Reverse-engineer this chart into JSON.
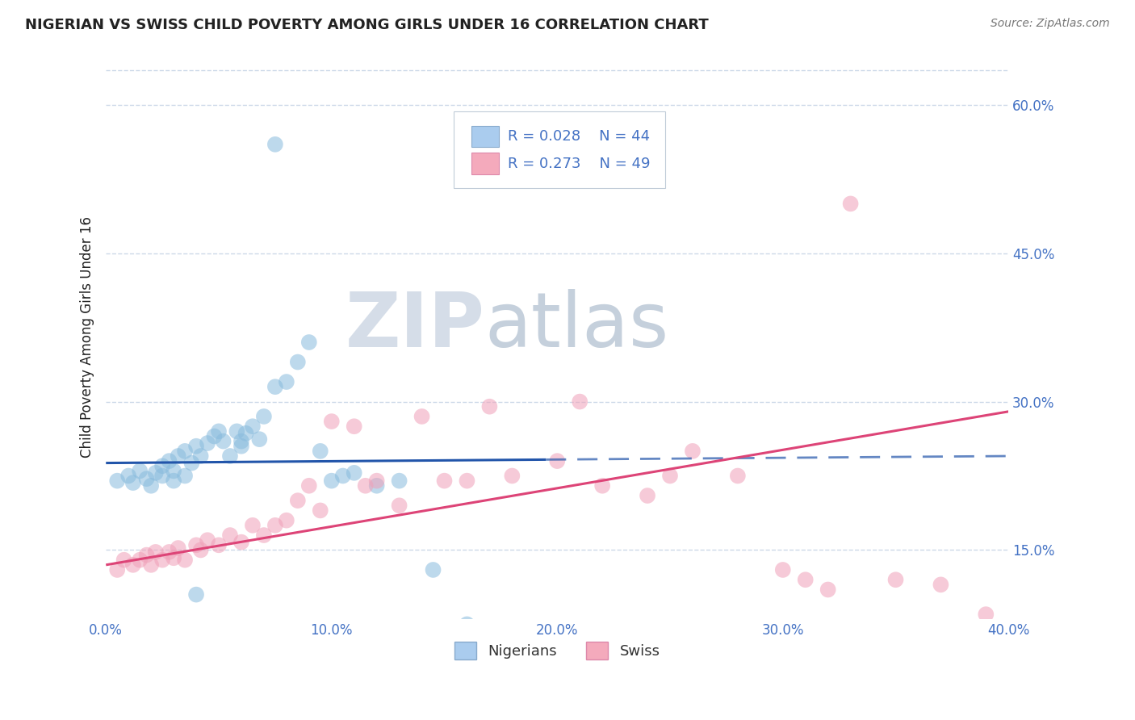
{
  "title": "NIGERIAN VS SWISS CHILD POVERTY AMONG GIRLS UNDER 16 CORRELATION CHART",
  "source": "Source: ZipAtlas.com",
  "ylabel": "Child Poverty Among Girls Under 16",
  "xlim": [
    0.0,
    0.4
  ],
  "ylim": [
    0.08,
    0.65
  ],
  "xtick_labels": [
    "0.0%",
    "10.0%",
    "20.0%",
    "30.0%",
    "40.0%"
  ],
  "xtick_values": [
    0.0,
    0.1,
    0.2,
    0.3,
    0.4
  ],
  "ytick_right_labels": [
    "15.0%",
    "30.0%",
    "45.0%",
    "60.0%"
  ],
  "ytick_right_values": [
    0.15,
    0.3,
    0.45,
    0.6
  ],
  "watermark_zip": "ZIP",
  "watermark_atlas": "atlas",
  "legend_color1": "#aaccee",
  "legend_color2": "#f4aabc",
  "blue_color": "#88bbdd",
  "pink_color": "#f0a0b8",
  "trend_blue": "#2255aa",
  "trend_pink": "#dd4477",
  "grid_color": "#ccd8e8",
  "background_color": "#ffffff",
  "title_color": "#222222",
  "source_color": "#777777",
  "axis_label_color": "#4472c4",
  "blue_trend_solid_end": 0.195,
  "blue_trend_start_y": 0.238,
  "blue_trend_end_y": 0.245,
  "pink_trend_start_y": 0.135,
  "pink_trend_end_y": 0.29,
  "blue_scatter_x": [
    0.005,
    0.01,
    0.012,
    0.015,
    0.018,
    0.02,
    0.022,
    0.025,
    0.025,
    0.028,
    0.03,
    0.03,
    0.032,
    0.035,
    0.035,
    0.038,
    0.04,
    0.042,
    0.045,
    0.048,
    0.05,
    0.052,
    0.055,
    0.058,
    0.06,
    0.06,
    0.062,
    0.065,
    0.068,
    0.07,
    0.075,
    0.08,
    0.085,
    0.09,
    0.095,
    0.1,
    0.105,
    0.11,
    0.12,
    0.13,
    0.145,
    0.16,
    0.075,
    0.04
  ],
  "blue_scatter_y": [
    0.22,
    0.225,
    0.218,
    0.23,
    0.222,
    0.215,
    0.228,
    0.235,
    0.225,
    0.24,
    0.22,
    0.23,
    0.245,
    0.225,
    0.25,
    0.238,
    0.255,
    0.245,
    0.258,
    0.265,
    0.27,
    0.26,
    0.245,
    0.27,
    0.26,
    0.255,
    0.268,
    0.275,
    0.262,
    0.285,
    0.315,
    0.32,
    0.34,
    0.36,
    0.25,
    0.22,
    0.225,
    0.228,
    0.215,
    0.22,
    0.13,
    0.075,
    0.56,
    0.105
  ],
  "pink_scatter_x": [
    0.005,
    0.008,
    0.012,
    0.015,
    0.018,
    0.02,
    0.022,
    0.025,
    0.028,
    0.03,
    0.032,
    0.035,
    0.04,
    0.042,
    0.045,
    0.05,
    0.055,
    0.06,
    0.065,
    0.07,
    0.075,
    0.08,
    0.085,
    0.09,
    0.095,
    0.1,
    0.11,
    0.115,
    0.12,
    0.13,
    0.14,
    0.15,
    0.16,
    0.17,
    0.18,
    0.2,
    0.21,
    0.22,
    0.24,
    0.25,
    0.26,
    0.28,
    0.3,
    0.31,
    0.32,
    0.33,
    0.35,
    0.37,
    0.39
  ],
  "pink_scatter_y": [
    0.13,
    0.14,
    0.135,
    0.14,
    0.145,
    0.135,
    0.148,
    0.14,
    0.148,
    0.142,
    0.152,
    0.14,
    0.155,
    0.15,
    0.16,
    0.155,
    0.165,
    0.158,
    0.175,
    0.165,
    0.175,
    0.18,
    0.2,
    0.215,
    0.19,
    0.28,
    0.275,
    0.215,
    0.22,
    0.195,
    0.285,
    0.22,
    0.22,
    0.295,
    0.225,
    0.24,
    0.3,
    0.215,
    0.205,
    0.225,
    0.25,
    0.225,
    0.13,
    0.12,
    0.11,
    0.5,
    0.12,
    0.115,
    0.085
  ]
}
